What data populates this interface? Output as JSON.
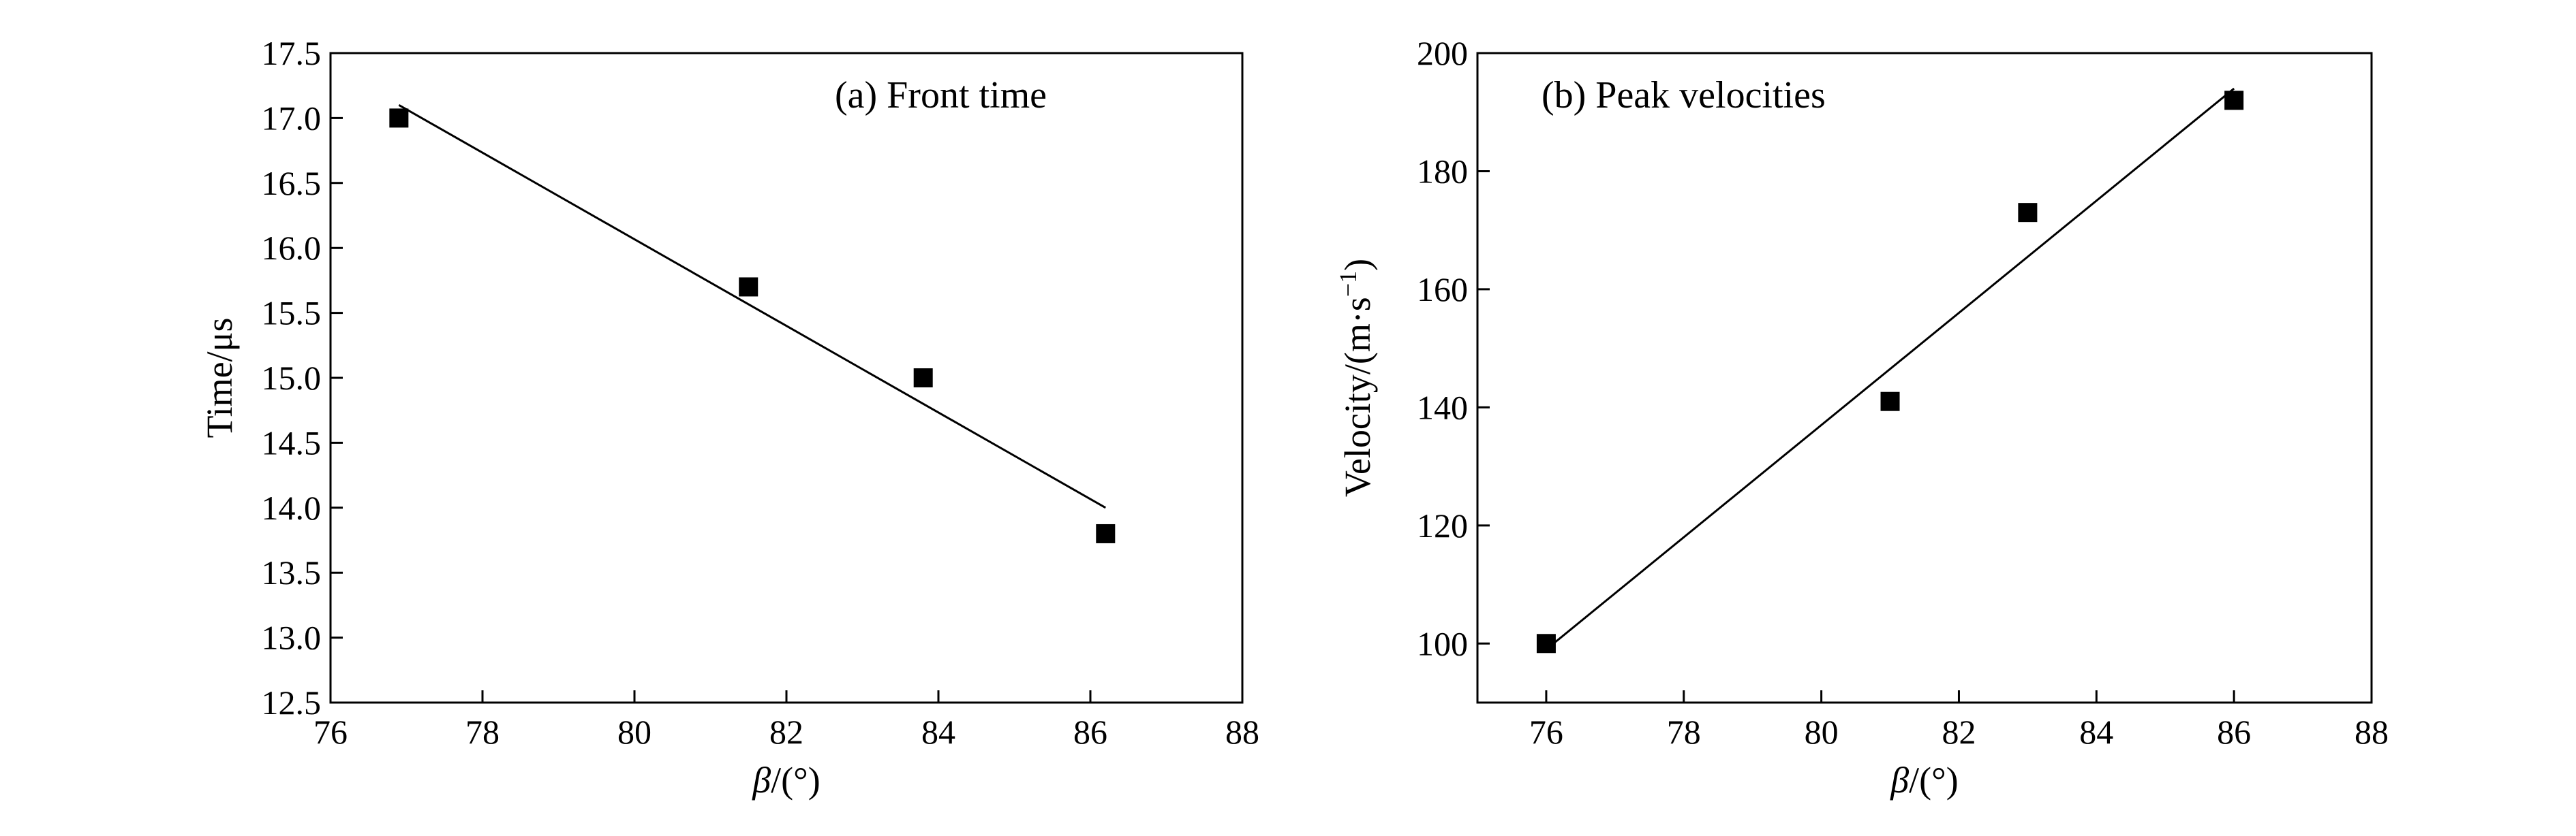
{
  "chart_data": [
    {
      "type": "scatter",
      "annotation": "(a) Front time",
      "xlabel_symbol": "β",
      "xlabel_unit": "/(°)",
      "ylabel": "Time/μs",
      "xlim": [
        76,
        88
      ],
      "ylim": [
        12.5,
        17.5
      ],
      "xticks": [
        "76",
        "78",
        "80",
        "82",
        "84",
        "86",
        "88"
      ],
      "yticks": [
        "12.5",
        "13.0",
        "13.5",
        "14.0",
        "14.5",
        "15.0",
        "15.5",
        "16.0",
        "16.5",
        "17.0",
        "17.5"
      ],
      "points": [
        {
          "x": 76.9,
          "y": 17.0
        },
        {
          "x": 81.5,
          "y": 15.7
        },
        {
          "x": 83.8,
          "y": 15.0
        },
        {
          "x": 86.2,
          "y": 13.8
        }
      ],
      "fit_line": [
        {
          "x": 76.9,
          "y": 17.1
        },
        {
          "x": 86.2,
          "y": 14.0
        }
      ],
      "grid": false,
      "marker": "square"
    },
    {
      "type": "scatter",
      "annotation": "(b) Peak velocities",
      "xlabel_symbol": "β",
      "xlabel_unit": "/(°)",
      "ylabel_main": "Velocity/(m·s",
      "ylabel_sup": "−1",
      "ylabel_end": ")",
      "xlim": [
        75,
        88
      ],
      "ylim": [
        90,
        200
      ],
      "xticks": [
        "76",
        "78",
        "80",
        "82",
        "84",
        "86",
        "88"
      ],
      "yticks": [
        "100",
        "120",
        "140",
        "160",
        "180",
        "200"
      ],
      "points": [
        {
          "x": 76,
          "y": 100
        },
        {
          "x": 81,
          "y": 141
        },
        {
          "x": 83,
          "y": 173
        },
        {
          "x": 86,
          "y": 192
        }
      ],
      "fit_line": [
        {
          "x": 76,
          "y": 99
        },
        {
          "x": 86,
          "y": 194
        }
      ],
      "grid": false,
      "marker": "square"
    }
  ]
}
